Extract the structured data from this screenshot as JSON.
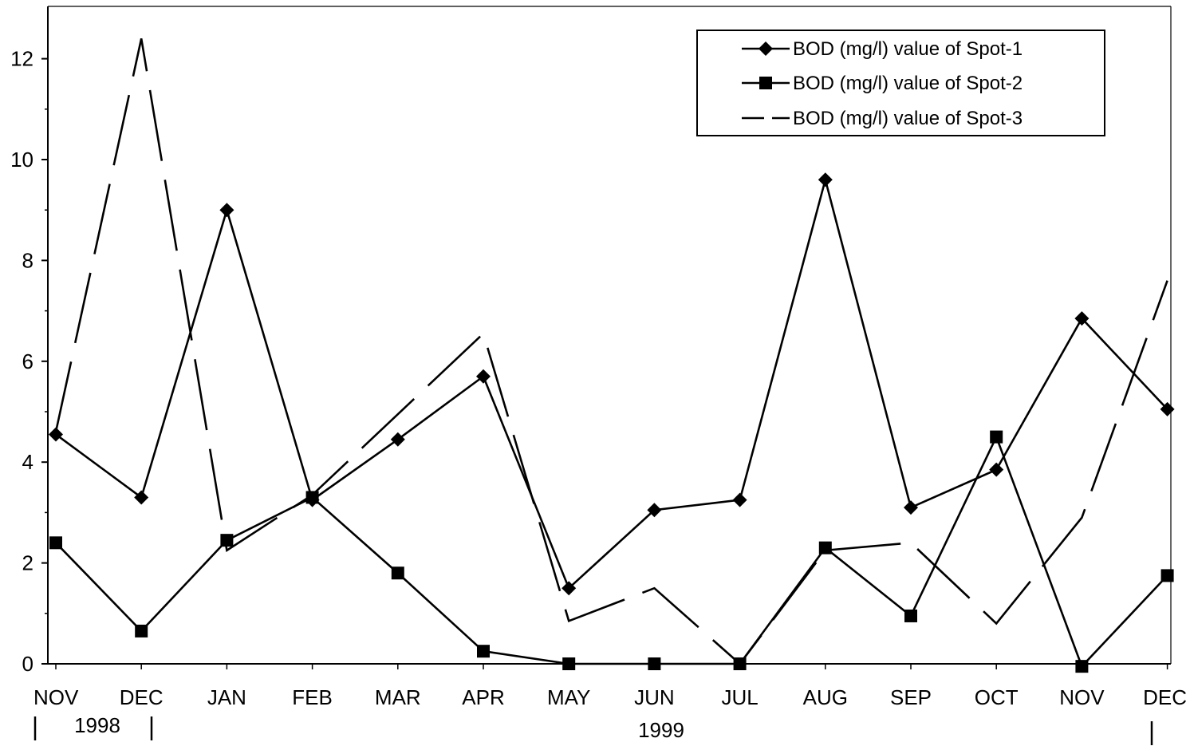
{
  "chart_data": {
    "type": "line",
    "categories": [
      "NOV",
      "DEC",
      "JAN",
      "FEB",
      "MAR",
      "APR",
      "MAY",
      "JUN",
      "JUL",
      "AUG",
      "SEP",
      "OCT",
      "NOV",
      "DEC"
    ],
    "year_labels": [
      {
        "label": "1998",
        "from": 0,
        "to": 1
      },
      {
        "label": "1999",
        "from": 2,
        "to": 13
      }
    ],
    "ylim": [
      0,
      13
    ],
    "yticks": [
      0,
      2,
      4,
      6,
      8,
      10,
      12
    ],
    "grid": false,
    "legend_position": "top-right",
    "series": [
      {
        "name": "BOD (mg/l) value of  Spot-1",
        "marker": "diamond",
        "dash": "solid",
        "values": [
          4.55,
          3.3,
          9.0,
          3.25,
          4.45,
          5.7,
          1.5,
          3.05,
          3.25,
          9.6,
          3.1,
          3.85,
          6.85,
          5.05
        ]
      },
      {
        "name": "BOD (mg/l) value of Spot-2",
        "marker": "square",
        "dash": "solid",
        "values": [
          2.4,
          0.65,
          2.45,
          3.3,
          1.8,
          0.25,
          0.0,
          0.0,
          0.0,
          2.3,
          0.95,
          4.5,
          -0.05,
          1.75
        ]
      },
      {
        "name": "BOD (mg/l) value of Spot-3",
        "marker": "none",
        "dash": "dashed",
        "values": [
          4.6,
          12.4,
          2.25,
          3.35,
          4.95,
          6.55,
          0.85,
          1.5,
          0.0,
          2.25,
          2.4,
          0.8,
          2.9,
          7.6
        ]
      }
    ],
    "colors": {
      "line": "#000000",
      "background": "#ffffff"
    }
  }
}
